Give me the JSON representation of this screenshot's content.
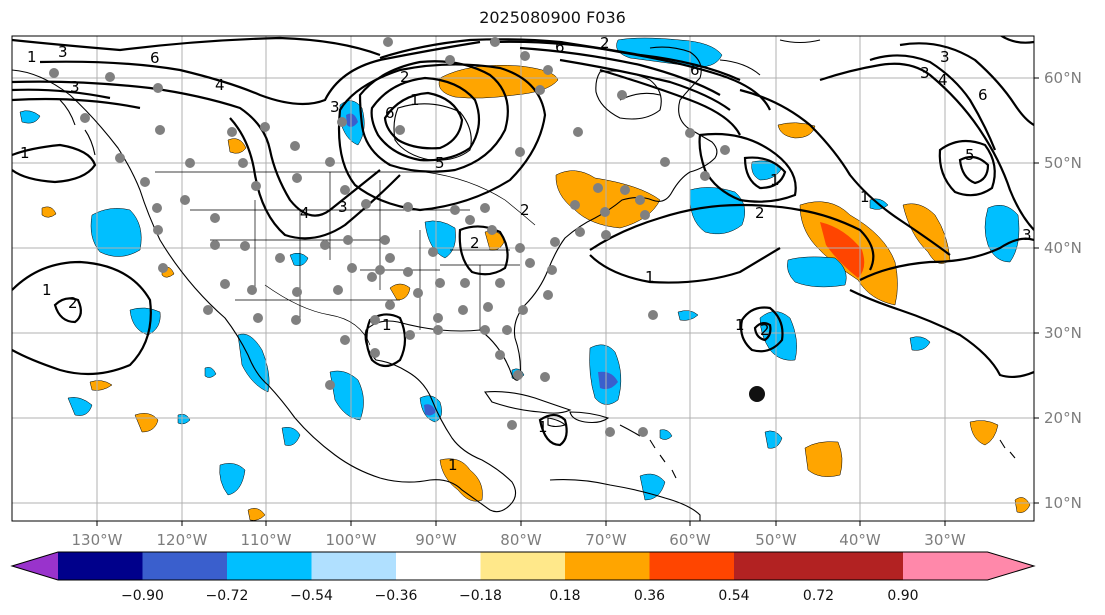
{
  "title": "2025080900 F036",
  "longitude_labels": [
    "130°W",
    "120°W",
    "110°W",
    "100°W",
    "90°W",
    "80°W",
    "70°W",
    "60°W",
    "50°W",
    "40°W",
    "30°W"
  ],
  "latitude_labels": [
    "60°N",
    "50°N",
    "40°N",
    "30°N",
    "20°N",
    "10°N"
  ],
  "colorbar": {
    "tick_labels": [
      "−0.90",
      "−0.72",
      "−0.54",
      "−0.36",
      "−0.18",
      "0.18",
      "0.36",
      "0.54",
      "0.72",
      "0.90"
    ],
    "colors": [
      "#9933cc",
      "#00008b",
      "#3a5fcd",
      "#00bfff",
      "#b0e0ff",
      "#ffffff",
      "#ffe88a",
      "#ffa500",
      "#ff4500",
      "#b22222",
      "#ff88aa"
    ]
  },
  "contour_labels": [
    "3",
    "6",
    "3",
    "4",
    "2",
    "3",
    "6",
    "1",
    "6",
    "2",
    "3",
    "4",
    "6",
    "3",
    "5",
    "3",
    "4",
    "5",
    "6",
    "3",
    "1",
    "1",
    "1",
    "2",
    "1",
    "2",
    "1",
    "1",
    "2",
    "1",
    "1",
    "2",
    "1",
    "1",
    "2"
  ],
  "colors": {
    "contour": "#000000",
    "station": "#808080",
    "cyclone_marker": "#111111",
    "grid": "#b0b0b0",
    "tick_label": "#7d7d7d"
  }
}
